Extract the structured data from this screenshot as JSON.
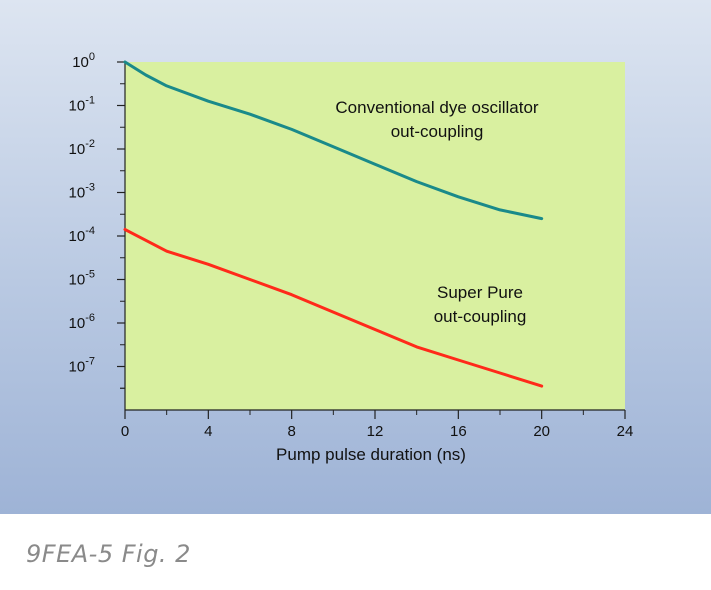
{
  "chart_data": {
    "type": "line",
    "xlabel": "Pump pulse duration (ns)",
    "ylabel": "",
    "xlim": [
      0,
      24
    ],
    "ylim_log10": [
      -8,
      0
    ],
    "y_scale": "log",
    "x_ticks": [
      "0",
      "4",
      "8",
      "12",
      "16",
      "20",
      "24"
    ],
    "x_tick_values": [
      0,
      4,
      8,
      12,
      16,
      20,
      24
    ],
    "y_ticks": [
      {
        "exp": 0,
        "base": "10",
        "sup": "0"
      },
      {
        "exp": -1,
        "base": "10",
        "sup": "-1"
      },
      {
        "exp": -2,
        "base": "10",
        "sup": "-2"
      },
      {
        "exp": -3,
        "base": "10",
        "sup": "-3"
      },
      {
        "exp": -4,
        "base": "10",
        "sup": "-4"
      },
      {
        "exp": -5,
        "base": "10",
        "sup": "-5"
      },
      {
        "exp": -6,
        "base": "10",
        "sup": "-6"
      },
      {
        "exp": -7,
        "base": "10",
        "sup": "-7"
      }
    ],
    "series": [
      {
        "name": "Conventional dye oscillator out-coupling",
        "label_lines": [
          "Conventional dye oscillator",
          "out-coupling"
        ],
        "color": "#1a8a8a",
        "x": [
          0,
          1,
          2,
          4,
          6,
          8,
          10,
          12,
          14,
          16,
          18,
          20
        ],
        "log10_y": [
          0,
          -0.3,
          -0.55,
          -0.9,
          -1.2,
          -1.55,
          -1.95,
          -2.35,
          -2.75,
          -3.1,
          -3.4,
          -3.6
        ]
      },
      {
        "name": "Super Pure out-coupling",
        "label_lines": [
          "Super Pure",
          "out-coupling"
        ],
        "color": "#ff2a1a",
        "x": [
          0,
          1,
          2,
          4,
          6,
          8,
          10,
          12,
          14,
          16,
          18,
          20
        ],
        "log10_y": [
          -3.85,
          -4.1,
          -4.35,
          -4.65,
          -5.0,
          -5.35,
          -5.75,
          -6.15,
          -6.55,
          -6.85,
          -7.15,
          -7.45
        ]
      }
    ]
  },
  "caption": "9FEA-5 Fig. 2"
}
